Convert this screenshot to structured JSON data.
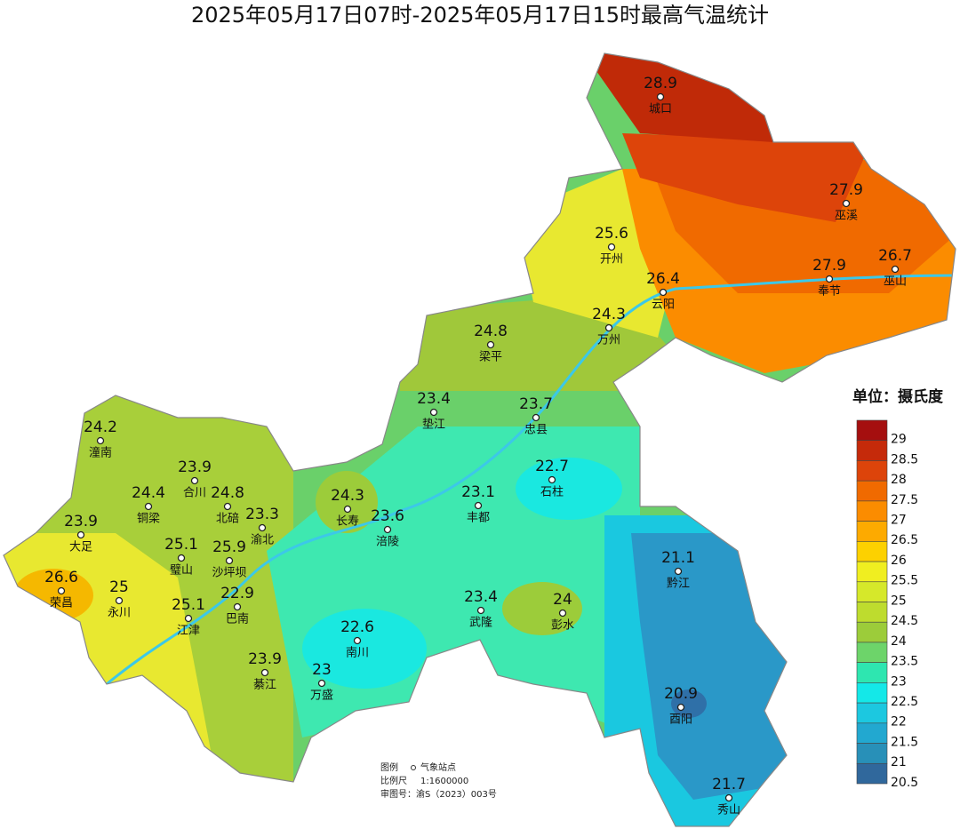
{
  "title": "2025年05月17日07时-2025年05月17日15时最高气温统计",
  "stations": [
    {
      "name": "城口",
      "value": 28.9
    },
    {
      "name": "巫溪",
      "value": 27.9
    },
    {
      "name": "开州",
      "value": 25.6
    },
    {
      "name": "奉节",
      "value": 27.9
    },
    {
      "name": "巫山",
      "value": 26.7
    },
    {
      "name": "云阳",
      "value": 26.4
    },
    {
      "name": "万州",
      "value": 24.3
    },
    {
      "name": "梁平",
      "value": 24.8
    },
    {
      "name": "垫江",
      "value": 23.4
    },
    {
      "name": "忠县",
      "value": 23.7
    },
    {
      "name": "潼南",
      "value": 24.2
    },
    {
      "name": "合川",
      "value": 23.9
    },
    {
      "name": "石柱",
      "value": 22.7
    },
    {
      "name": "铜梁",
      "value": 24.4
    },
    {
      "name": "北碚",
      "value": 24.8
    },
    {
      "name": "渝北",
      "value": 23.3
    },
    {
      "name": "长寿",
      "value": 24.3
    },
    {
      "name": "涪陵",
      "value": 23.6
    },
    {
      "name": "丰都",
      "value": 23.1
    },
    {
      "name": "大足",
      "value": 23.9
    },
    {
      "name": "璧山",
      "value": 25.1
    },
    {
      "name": "沙坪坝",
      "value": 25.9
    },
    {
      "name": "黔江",
      "value": 21.1
    },
    {
      "name": "荣昌",
      "value": 26.6
    },
    {
      "name": "永川",
      "value": 25
    },
    {
      "name": "巴南",
      "value": 22.9
    },
    {
      "name": "江津",
      "value": 25.1
    },
    {
      "name": "武隆",
      "value": 23.4
    },
    {
      "name": "彭水",
      "value": 24
    },
    {
      "name": "南川",
      "value": 22.6
    },
    {
      "name": "綦江",
      "value": 23.9
    },
    {
      "name": "万盛",
      "value": 23
    },
    {
      "name": "酉阳",
      "value": 20.9
    },
    {
      "name": "秀山",
      "value": 21.7
    }
  ],
  "legend": {
    "title": "单位：摄氏度",
    "items": [
      {
        "value": 29,
        "color": "#a50f0f"
      },
      {
        "value": 28.5,
        "color": "#c52a0a"
      },
      {
        "value": 28,
        "color": "#dd440a"
      },
      {
        "value": 27.5,
        "color": "#f06a00"
      },
      {
        "value": 27,
        "color": "#fb8c00"
      },
      {
        "value": 26.5,
        "color": "#fdaa00"
      },
      {
        "value": 26,
        "color": "#fdd100"
      },
      {
        "value": 25.5,
        "color": "#f0ee20"
      },
      {
        "value": 25,
        "color": "#d6e82a"
      },
      {
        "value": 24.5,
        "color": "#bedc2e"
      },
      {
        "value": 24,
        "color": "#9ccc3a"
      },
      {
        "value": 23.5,
        "color": "#6dd46a"
      },
      {
        "value": 23,
        "color": "#2ee6b0"
      },
      {
        "value": 22.5,
        "color": "#14e8e8"
      },
      {
        "value": 22,
        "color": "#1cc8e0"
      },
      {
        "value": 21.5,
        "color": "#22a8d0"
      },
      {
        "value": 21,
        "color": "#2890b8"
      },
      {
        "value": 20.5,
        "color": "#30689c"
      }
    ]
  },
  "notes": {
    "legend_label": "图例",
    "legend_item": "气象站点",
    "scale_label": "比例尺",
    "scale": "1:1600000",
    "approval": "审图号：渝S（2023）003号"
  }
}
